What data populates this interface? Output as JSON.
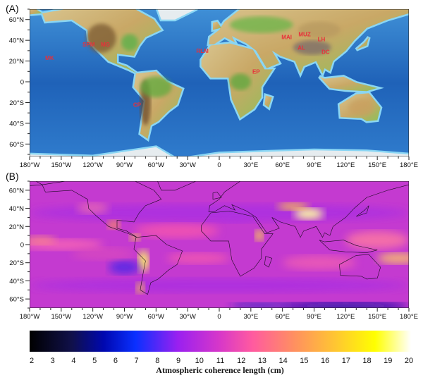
{
  "panels": [
    {
      "label": "(A)",
      "kind": "topography"
    },
    {
      "label": "(B)",
      "kind": "coherence"
    }
  ],
  "lat_ticks": [
    "60°N",
    "40°N",
    "20°N",
    "0",
    "20°S",
    "40°S",
    "60°S"
  ],
  "lat_tick_values": [
    60,
    40,
    20,
    0,
    -20,
    -40,
    -60
  ],
  "lon_ticks": [
    "180°W",
    "150°W",
    "120°W",
    "90°W",
    "60°W",
    "30°W",
    "0",
    "30°E",
    "60°E",
    "90°E",
    "120°E",
    "150°E",
    "180°E"
  ],
  "lon_tick_values": [
    -180,
    -150,
    -120,
    -90,
    -60,
    -30,
    0,
    30,
    60,
    90,
    120,
    150,
    180
  ],
  "stations": [
    {
      "name": "MK",
      "lon": -161,
      "lat": 23
    },
    {
      "name": "SPM",
      "lon": -124,
      "lat": 36
    },
    {
      "name": "MG",
      "lon": -108,
      "lat": 36
    },
    {
      "name": "RLM",
      "lon": -16,
      "lat": 30
    },
    {
      "name": "EP",
      "lon": 35,
      "lat": 10
    },
    {
      "name": "MAI",
      "lon": 64,
      "lat": 43
    },
    {
      "name": "MUZ",
      "lon": 81,
      "lat": 46
    },
    {
      "name": "LH",
      "lon": 97,
      "lat": 41
    },
    {
      "name": "AL",
      "lon": 78,
      "lat": 33
    },
    {
      "name": "DC",
      "lon": 101,
      "lat": 29
    },
    {
      "name": "CP",
      "lon": -78,
      "lat": -22
    }
  ],
  "colorbar": {
    "title": "Atmospheric coherence length (cm)",
    "ticks": [
      "2",
      "3",
      "4",
      "5",
      "6",
      "7",
      "8",
      "9",
      "10",
      "11",
      "12",
      "13",
      "14",
      "15",
      "16",
      "17",
      "18",
      "19",
      "20"
    ],
    "range": [
      2,
      20
    ],
    "stops": [
      {
        "v": 2,
        "c": "#000000"
      },
      {
        "v": 4,
        "c": "#10104a"
      },
      {
        "v": 5.5,
        "c": "#0008b0"
      },
      {
        "v": 7,
        "c": "#0a30ff"
      },
      {
        "v": 9,
        "c": "#9a20f0"
      },
      {
        "v": 11,
        "c": "#d838c8"
      },
      {
        "v": 12.5,
        "c": "#ff5aa0"
      },
      {
        "v": 14.5,
        "c": "#ff9060"
      },
      {
        "v": 16.5,
        "c": "#ffc830"
      },
      {
        "v": 18.3,
        "c": "#ffff00"
      },
      {
        "v": 20,
        "c": "#ffffff"
      }
    ]
  },
  "colors": {
    "ocean": "#2a78c8",
    "land": "#d9c08a",
    "lowland": "#6fb84a",
    "mountain": "#8a6a3a",
    "coherence_bg": "#c43ad0"
  }
}
